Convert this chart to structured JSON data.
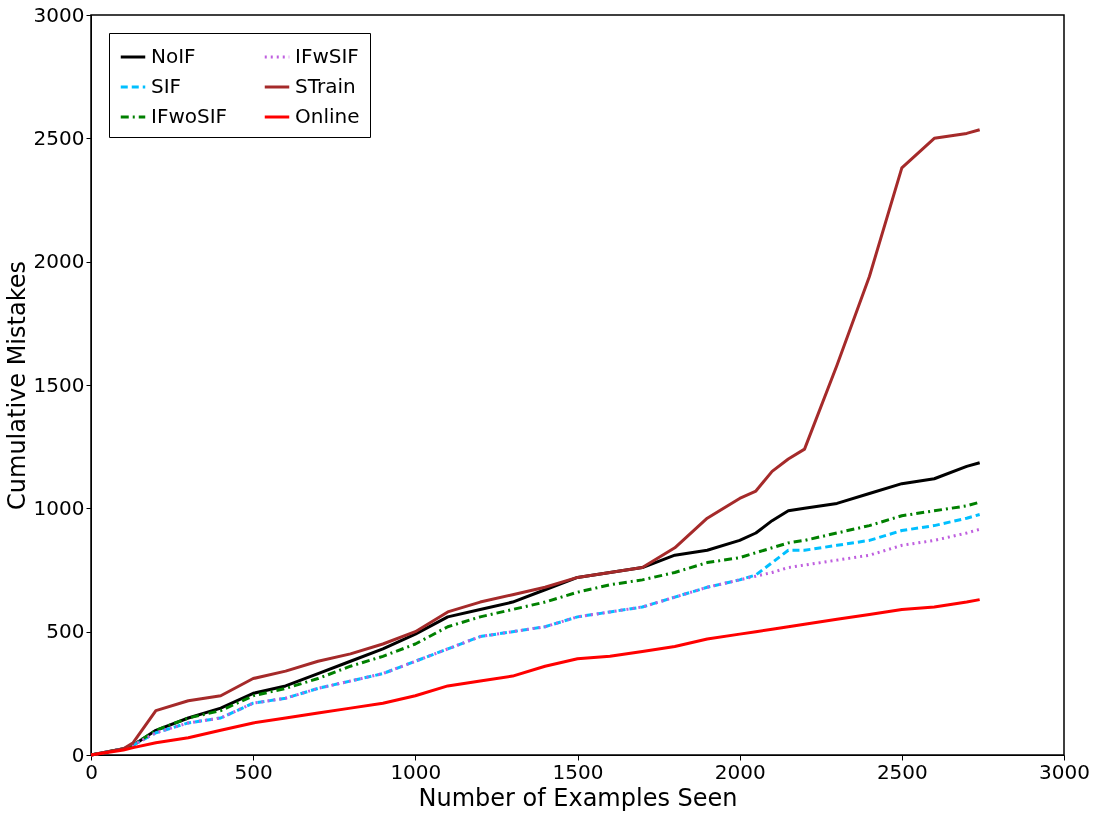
{
  "chart_data": {
    "type": "line",
    "xlabel": "Number of Examples Seen",
    "ylabel": "Cumulative Mistakes",
    "x": [
      0,
      100,
      130,
      200,
      300,
      400,
      500,
      600,
      700,
      800,
      900,
      1000,
      1100,
      1200,
      1300,
      1400,
      1500,
      1600,
      1700,
      1800,
      1900,
      2000,
      2050,
      2100,
      2150,
      2200,
      2300,
      2400,
      2500,
      2600,
      2700,
      2740
    ],
    "series": [
      {
        "name": "NoIF",
        "color": "#000000",
        "line_style": "solid",
        "values": [
          0,
          25,
          40,
          100,
          150,
          190,
          250,
          280,
          330,
          380,
          430,
          490,
          560,
          590,
          620,
          670,
          720,
          740,
          760,
          810,
          830,
          870,
          900,
          950,
          990,
          1000,
          1020,
          1060,
          1100,
          1120,
          1170,
          1185
        ]
      },
      {
        "name": "SIF",
        "color": "#00bfff",
        "line_style": "dashed",
        "values": [
          0,
          25,
          40,
          90,
          130,
          150,
          210,
          230,
          270,
          300,
          330,
          380,
          430,
          480,
          500,
          520,
          560,
          580,
          600,
          640,
          680,
          710,
          730,
          780,
          830,
          830,
          850,
          870,
          910,
          930,
          960,
          975
        ]
      },
      {
        "name": "IFwoSIF",
        "color": "#008000",
        "line_style": "dashdot",
        "values": [
          0,
          25,
          40,
          100,
          150,
          180,
          240,
          270,
          310,
          360,
          400,
          450,
          520,
          560,
          590,
          620,
          660,
          690,
          710,
          740,
          780,
          800,
          820,
          840,
          860,
          870,
          900,
          930,
          970,
          990,
          1010,
          1025
        ]
      },
      {
        "name": "IFwSIF",
        "color": "#bf5fdf",
        "line_style": "dotted",
        "values": [
          0,
          25,
          40,
          90,
          130,
          150,
          210,
          230,
          270,
          300,
          330,
          380,
          430,
          480,
          500,
          520,
          560,
          580,
          600,
          640,
          680,
          710,
          725,
          740,
          760,
          770,
          790,
          810,
          850,
          870,
          900,
          915
        ]
      },
      {
        "name": "STrain",
        "color": "#a52a2a",
        "line_style": "solid",
        "values": [
          0,
          25,
          50,
          180,
          220,
          240,
          310,
          340,
          380,
          410,
          450,
          500,
          580,
          620,
          650,
          680,
          720,
          740,
          760,
          840,
          960,
          1040,
          1070,
          1150,
          1200,
          1240,
          1580,
          1940,
          2380,
          2500,
          2520,
          2535
        ]
      },
      {
        "name": "Online",
        "color": "#ff0000",
        "line_style": "solid",
        "values": [
          0,
          20,
          30,
          50,
          70,
          100,
          130,
          150,
          170,
          190,
          210,
          240,
          280,
          300,
          320,
          360,
          390,
          400,
          420,
          440,
          470,
          490,
          500,
          510,
          520,
          530,
          550,
          570,
          590,
          600,
          620,
          630
        ]
      }
    ],
    "xlim": [
      0,
      3000
    ],
    "xticks": [
      0,
      500,
      1000,
      1500,
      2000,
      2500,
      3000
    ],
    "ylim": [
      0,
      3000
    ],
    "yticks": [
      0,
      500,
      1000,
      1500,
      2000,
      2500,
      3000
    ],
    "grid": false,
    "legend": "top left"
  }
}
